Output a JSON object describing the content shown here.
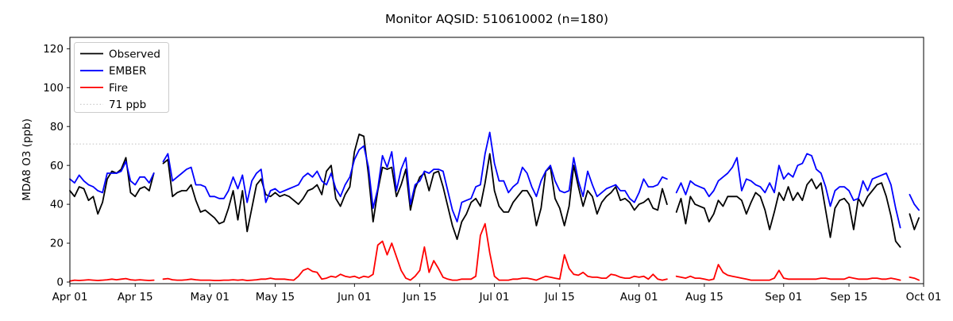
{
  "figure": {
    "title": "Monitor AQSID: 510610002 (n=180)",
    "n_points": 180
  },
  "chart_data": {
    "type": "line",
    "title": "Monitor AQSID: 510610002 (n=180)",
    "xlabel": "",
    "ylabel": "MDA8 O3 (ppb)",
    "ylim": [
      -0.8,
      125.9
    ],
    "yticks": [
      0,
      20,
      40,
      60,
      80,
      100,
      120
    ],
    "grid": false,
    "legend_position": "upper-left",
    "x_axis_note": "daily values; index 0 = Apr 01, index 182 = Sep 30; null = missing day (Apr 20, Aug 08, Sep 27)",
    "x_range_days": [
      0,
      183
    ],
    "xticks": [
      {
        "label": "Apr 01",
        "day": 0
      },
      {
        "label": "Apr 15",
        "day": 14
      },
      {
        "label": "May 01",
        "day": 30
      },
      {
        "label": "May 15",
        "day": 44
      },
      {
        "label": "Jun 01",
        "day": 61
      },
      {
        "label": "Jun 15",
        "day": 75
      },
      {
        "label": "Jul 01",
        "day": 91
      },
      {
        "label": "Jul 15",
        "day": 105
      },
      {
        "label": "Aug 01",
        "day": 122
      },
      {
        "label": "Aug 15",
        "day": 136
      },
      {
        "label": "Sep 01",
        "day": 153
      },
      {
        "label": "Sep 15",
        "day": 167
      },
      {
        "label": "Oct 01",
        "day": 183
      }
    ],
    "threshold": {
      "label": "71 ppb",
      "value": 71,
      "color": "#cccccc",
      "style": "dotted"
    },
    "legend": [
      {
        "label": "Observed",
        "color": "#000000",
        "style": "solid"
      },
      {
        "label": "EMBER",
        "color": "#0000ff",
        "style": "solid"
      },
      {
        "label": "Fire",
        "color": "#ff0000",
        "style": "solid"
      },
      {
        "label": "71 ppb",
        "color": "#cccccc",
        "style": "dotted"
      }
    ],
    "series": [
      {
        "name": "Observed",
        "color": "#000000",
        "values": [
          47,
          44,
          49,
          48,
          42,
          44,
          35,
          41,
          53,
          57,
          56,
          58,
          64,
          46,
          44,
          48,
          49,
          47,
          56,
          null,
          61,
          63,
          44,
          46,
          47,
          47,
          50,
          42,
          36,
          37,
          35,
          33,
          30,
          31,
          38,
          47,
          32,
          47,
          26,
          38,
          50,
          53,
          45,
          44,
          46,
          44,
          45,
          44,
          42,
          40,
          43,
          47,
          48,
          50,
          45,
          57,
          60,
          43,
          39,
          45,
          49,
          67,
          76,
          75,
          55,
          31,
          47,
          59,
          58,
          59,
          44,
          50,
          58,
          37,
          48,
          54,
          56,
          47,
          56,
          57,
          49,
          39,
          29,
          22,
          31,
          35,
          41,
          43,
          39,
          51,
          66,
          47,
          39,
          36,
          36,
          41,
          44,
          47,
          47,
          43,
          29,
          38,
          57,
          59,
          43,
          38,
          29,
          39,
          60,
          49,
          39,
          47,
          44,
          35,
          41,
          44,
          46,
          49,
          42,
          43,
          41,
          37,
          40,
          41,
          43,
          38,
          37,
          48,
          40,
          null,
          36,
          43,
          30,
          44,
          40,
          39,
          38,
          31,
          35,
          42,
          39,
          44,
          44,
          44,
          42,
          35,
          41,
          46,
          44,
          37,
          27,
          36,
          46,
          42,
          49,
          42,
          46,
          42,
          50,
          53,
          48,
          51,
          37,
          23,
          38,
          42,
          43,
          40,
          27,
          43,
          39,
          44,
          47,
          50,
          51,
          44,
          34,
          21,
          18,
          null,
          35,
          27,
          33
        ]
      },
      {
        "name": "EMBER",
        "color": "#0000ff",
        "values": [
          53,
          51,
          55,
          52,
          50,
          49,
          47,
          46,
          56,
          56,
          56,
          57,
          62,
          52,
          50,
          54,
          54,
          51,
          56,
          null,
          62,
          66,
          52,
          54,
          56,
          58,
          59,
          50,
          50,
          49,
          44,
          44,
          43,
          43,
          47,
          54,
          48,
          55,
          41,
          52,
          56,
          58,
          41,
          47,
          48,
          46,
          47,
          48,
          49,
          50,
          54,
          56,
          54,
          57,
          52,
          50,
          56,
          48,
          44,
          50,
          54,
          63,
          68,
          70,
          59,
          38,
          48,
          65,
          59,
          67,
          47,
          58,
          64,
          40,
          50,
          52,
          57,
          56,
          58,
          58,
          57,
          47,
          37,
          31,
          41,
          42,
          43,
          49,
          50,
          66,
          77,
          61,
          52,
          52,
          46,
          49,
          51,
          59,
          56,
          49,
          44,
          52,
          57,
          60,
          52,
          47,
          46,
          47,
          64,
          52,
          44,
          57,
          50,
          44,
          46,
          48,
          49,
          50,
          47,
          47,
          43,
          41,
          46,
          53,
          49,
          49,
          50,
          54,
          53,
          null,
          46,
          51,
          45,
          52,
          50,
          49,
          48,
          44,
          47,
          52,
          54,
          56,
          59,
          64,
          47,
          53,
          52,
          50,
          49,
          46,
          51,
          46,
          60,
          53,
          56,
          54,
          60,
          61,
          66,
          65,
          58,
          56,
          49,
          39,
          47,
          49,
          49,
          47,
          42,
          43,
          52,
          47,
          53,
          54,
          55,
          56,
          50,
          38,
          28,
          null,
          45,
          40,
          37
        ]
      },
      {
        "name": "Fire",
        "color": "#ff0000",
        "values": [
          0.5,
          1,
          0.8,
          1,
          1.2,
          1,
          0.8,
          1,
          1.2,
          1.5,
          1.2,
          1.5,
          1.8,
          1.2,
          1,
          1.2,
          1,
          0.8,
          1,
          null,
          1.5,
          1.8,
          1.2,
          1,
          1,
          1.2,
          1.5,
          1.2,
          1,
          1,
          1,
          0.8,
          0.8,
          1,
          1,
          1.2,
          1,
          1.2,
          0.8,
          1,
          1.2,
          1.5,
          1.5,
          2,
          1.5,
          1.5,
          1.5,
          1.2,
          1,
          3,
          6,
          7,
          5.5,
          5,
          1.5,
          2,
          3,
          2.5,
          4,
          3,
          2.5,
          3,
          2,
          3,
          2.5,
          4,
          19,
          21,
          14,
          20,
          13,
          6,
          2,
          1,
          3,
          6,
          18,
          5,
          11,
          7,
          2.5,
          1.5,
          1,
          1,
          1.5,
          1.5,
          1.5,
          3,
          24,
          30,
          15,
          3,
          1,
          1,
          1,
          1.5,
          1.5,
          2,
          2,
          1.5,
          1,
          2,
          3,
          2.5,
          2,
          1.5,
          14,
          7,
          4,
          3.5,
          5,
          3,
          2.5,
          2.5,
          2,
          2,
          4,
          3.5,
          2.5,
          2,
          2,
          3,
          2.5,
          3,
          1.5,
          4,
          1.5,
          1,
          1.5,
          null,
          3,
          2.5,
          2,
          3,
          2,
          2,
          1.5,
          1,
          1.5,
          9,
          5,
          3.5,
          3,
          2.5,
          2,
          1.5,
          1,
          1,
          1,
          1,
          1,
          2,
          6,
          2,
          1.5,
          1.5,
          1.5,
          1.5,
          1.5,
          1.5,
          1.5,
          2,
          2,
          1.5,
          1.5,
          1.5,
          1.5,
          2.5,
          2,
          1.5,
          1.5,
          1.5,
          2,
          2,
          1.5,
          1.5,
          2,
          1.5,
          1,
          null,
          2.5,
          2,
          1
        ]
      }
    ]
  }
}
